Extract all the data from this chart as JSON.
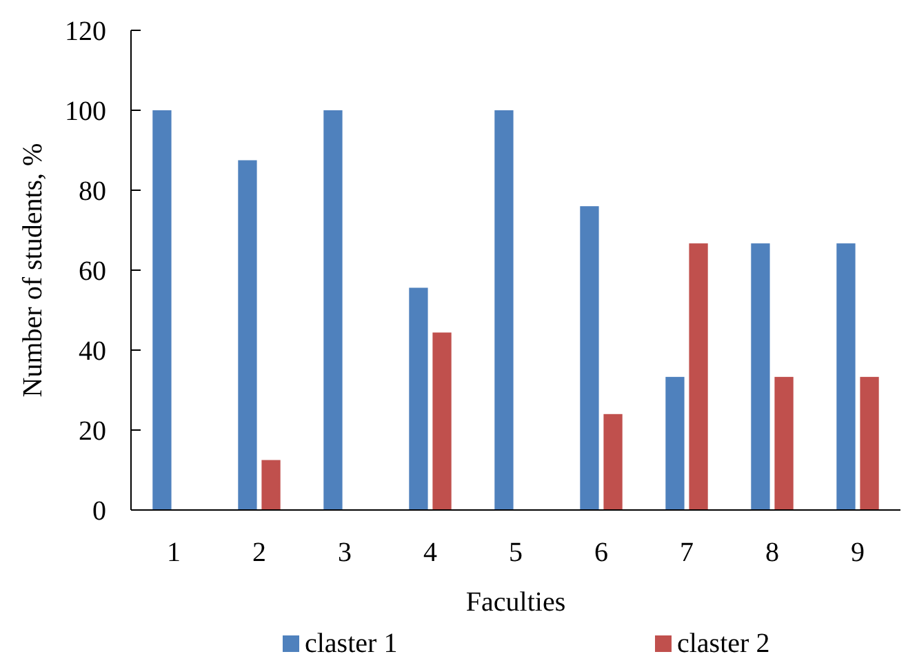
{
  "chart_data": {
    "type": "bar",
    "xlabel": "Faculties",
    "ylabel": "Number of students, %",
    "categories": [
      "1",
      "2",
      "3",
      "4",
      "5",
      "6",
      "7",
      "8",
      "9"
    ],
    "series": [
      {
        "name": "claster 1",
        "color": "#4f81bd",
        "values": [
          100,
          87.5,
          100,
          55.6,
          100,
          76,
          33.3,
          66.7,
          66.7
        ]
      },
      {
        "name": "claster 2",
        "color": "#c0504d",
        "values": [
          0,
          12.5,
          0,
          44.4,
          0,
          24,
          66.7,
          33.3,
          33.3
        ]
      }
    ],
    "ylim": [
      0,
      120
    ],
    "yticks": [
      0,
      20,
      40,
      60,
      80,
      100,
      120
    ],
    "grid": false,
    "legend": "bottom"
  }
}
